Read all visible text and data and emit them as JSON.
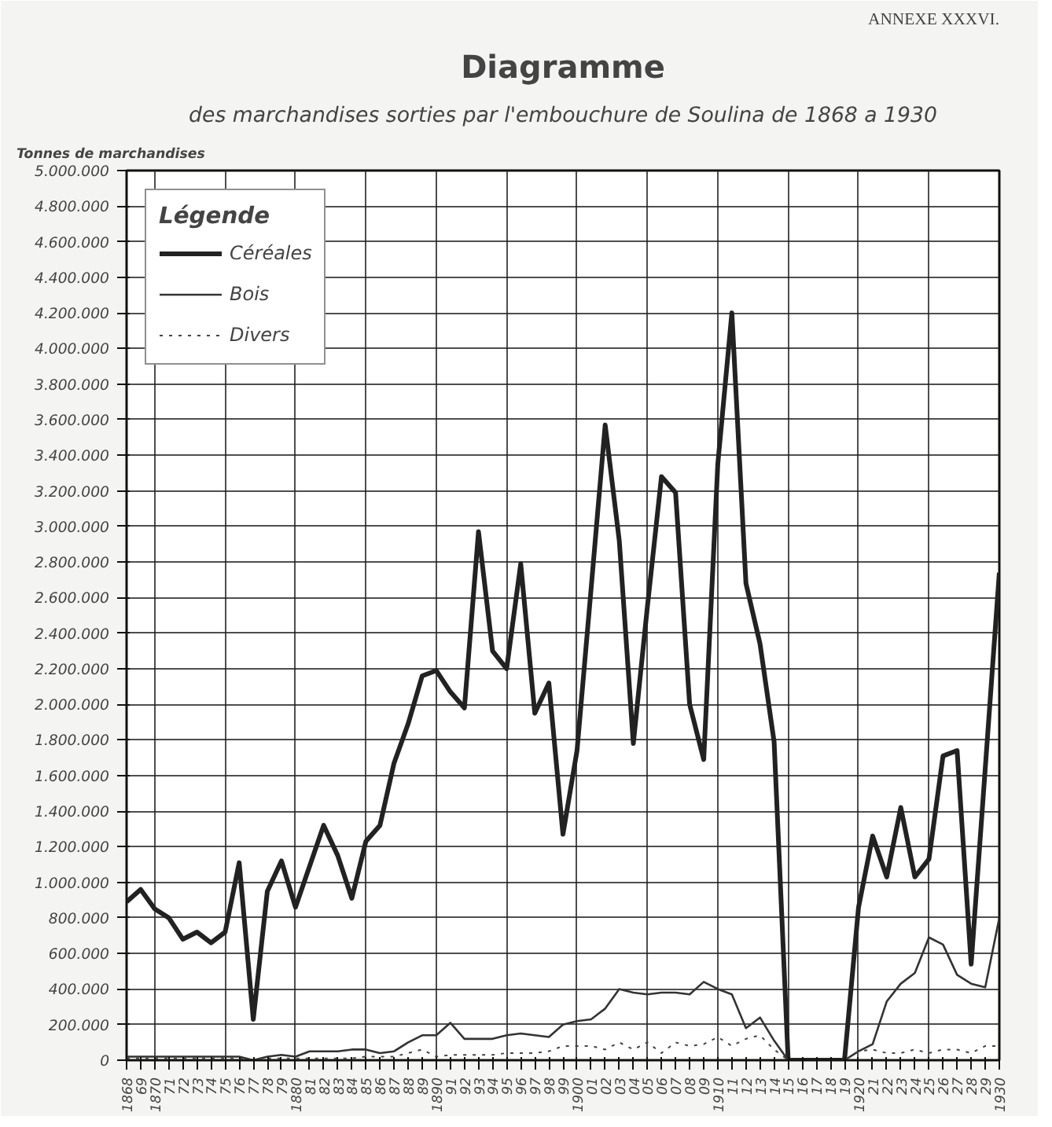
{
  "chart_data": {
    "type": "line",
    "title": "Diagramme",
    "subtitle": "des marchandises sorties par l'embouchure de Soulina de 1868 a 1930",
    "ylabel": "Tonnes de marchandises",
    "legend_title": "Légende",
    "annotations": [
      "ANNEXE XXXVI."
    ],
    "x": [
      1868,
      1869,
      1870,
      1871,
      1872,
      1873,
      1874,
      1875,
      1876,
      1877,
      1878,
      1879,
      1880,
      1881,
      1882,
      1883,
      1884,
      1885,
      1886,
      1887,
      1888,
      1889,
      1890,
      1891,
      1892,
      1893,
      1894,
      1895,
      1896,
      1897,
      1898,
      1899,
      1900,
      1901,
      1902,
      1903,
      1904,
      1905,
      1906,
      1907,
      1908,
      1909,
      1910,
      1911,
      1912,
      1913,
      1914,
      1915,
      1916,
      1917,
      1918,
      1919,
      1920,
      1921,
      1922,
      1923,
      1924,
      1925,
      1926,
      1927,
      1928,
      1929,
      1930
    ],
    "series": [
      {
        "name": "Céréales",
        "color": "#222222",
        "line_style": "solid",
        "values": [
          890000,
          960000,
          850000,
          800000,
          680000,
          720000,
          660000,
          720000,
          1110000,
          230000,
          950000,
          1120000,
          860000,
          1090000,
          1320000,
          1150000,
          910000,
          1230000,
          1320000,
          1670000,
          1890000,
          2160000,
          2190000,
          2070000,
          1980000,
          2970000,
          2300000,
          2200000,
          2790000,
          1950000,
          2120000,
          1270000,
          1740000,
          2650000,
          3570000,
          2920000,
          1780000,
          2550000,
          3280000,
          3190000,
          2000000,
          1690000,
          3350000,
          4200000,
          2680000,
          2340000,
          1790000,
          0,
          0,
          0,
          0,
          0,
          860000,
          1260000,
          1030000,
          1420000,
          1030000,
          1130000,
          1710000,
          1740000,
          540000,
          1640000,
          2740000
        ]
      },
      {
        "name": "Bois",
        "color": "#333333",
        "line_style": "solid",
        "values": [
          20000,
          20000,
          20000,
          20000,
          20000,
          20000,
          20000,
          20000,
          20000,
          0,
          20000,
          30000,
          20000,
          50000,
          50000,
          50000,
          60000,
          60000,
          40000,
          50000,
          100000,
          140000,
          140000,
          210000,
          120000,
          120000,
          120000,
          140000,
          150000,
          140000,
          130000,
          200000,
          220000,
          230000,
          290000,
          400000,
          380000,
          370000,
          380000,
          380000,
          370000,
          440000,
          400000,
          370000,
          180000,
          240000,
          110000,
          0,
          0,
          0,
          0,
          0,
          50000,
          90000,
          330000,
          430000,
          490000,
          690000,
          650000,
          480000,
          430000,
          410000,
          800000
        ]
      },
      {
        "name": "Divers",
        "color": "#444444",
        "line_style": "dotted",
        "values": [
          10000,
          10000,
          10000,
          10000,
          10000,
          10000,
          10000,
          10000,
          10000,
          0,
          10000,
          10000,
          10000,
          10000,
          10000,
          10000,
          10000,
          20000,
          20000,
          20000,
          40000,
          60000,
          20000,
          30000,
          30000,
          30000,
          30000,
          40000,
          40000,
          40000,
          50000,
          80000,
          80000,
          80000,
          60000,
          100000,
          60000,
          100000,
          40000,
          100000,
          80000,
          90000,
          130000,
          80000,
          120000,
          140000,
          60000,
          0,
          0,
          0,
          0,
          0,
          50000,
          60000,
          40000,
          40000,
          60000,
          40000,
          60000,
          60000,
          40000,
          80000,
          80000
        ]
      }
    ],
    "xlim": [
      1868,
      1930
    ],
    "ylim": [
      0,
      5000000
    ],
    "xticks": [
      1868,
      {
        "value": 1869,
        "label": "69"
      },
      1870,
      {
        "value": 1871,
        "label": "71"
      },
      {
        "value": 1872,
        "label": "72"
      },
      {
        "value": 1873,
        "label": "73"
      },
      {
        "value": 1874,
        "label": "74"
      },
      {
        "value": 1875,
        "label": "75"
      },
      {
        "value": 1876,
        "label": "76"
      },
      {
        "value": 1877,
        "label": "77"
      },
      {
        "value": 1878,
        "label": "78"
      },
      {
        "value": 1879,
        "label": "79"
      },
      1880,
      {
        "value": 1881,
        "label": "81"
      },
      {
        "value": 1882,
        "label": "82"
      },
      {
        "value": 1883,
        "label": "83"
      },
      {
        "value": 1884,
        "label": "84"
      },
      {
        "value": 1885,
        "label": "85"
      },
      {
        "value": 1886,
        "label": "86"
      },
      {
        "value": 1887,
        "label": "87"
      },
      {
        "value": 1888,
        "label": "88"
      },
      {
        "value": 1889,
        "label": "89"
      },
      1890,
      {
        "value": 1891,
        "label": "91"
      },
      {
        "value": 1892,
        "label": "92"
      },
      {
        "value": 1893,
        "label": "93"
      },
      {
        "value": 1894,
        "label": "94"
      },
      {
        "value": 1895,
        "label": "95"
      },
      {
        "value": 1896,
        "label": "96"
      },
      {
        "value": 1897,
        "label": "97"
      },
      {
        "value": 1898,
        "label": "98"
      },
      {
        "value": 1899,
        "label": "99"
      },
      1900,
      {
        "value": 1901,
        "label": "01"
      },
      {
        "value": 1902,
        "label": "02"
      },
      {
        "value": 1903,
        "label": "03"
      },
      {
        "value": 1904,
        "label": "04"
      },
      {
        "value": 1905,
        "label": "05"
      },
      {
        "value": 1906,
        "label": "06"
      },
      {
        "value": 1907,
        "label": "07"
      },
      {
        "value": 1908,
        "label": "08"
      },
      {
        "value": 1909,
        "label": "09"
      },
      1910,
      {
        "value": 1911,
        "label": "11"
      },
      {
        "value": 1912,
        "label": "12"
      },
      {
        "value": 1913,
        "label": "13"
      },
      {
        "value": 1914,
        "label": "14"
      },
      {
        "value": 1915,
        "label": "15"
      },
      {
        "value": 1916,
        "label": "16"
      },
      {
        "value": 1917,
        "label": "17"
      },
      {
        "value": 1918,
        "label": "18"
      },
      {
        "value": 1919,
        "label": "19"
      },
      1920,
      {
        "value": 1921,
        "label": "21"
      },
      {
        "value": 1922,
        "label": "22"
      },
      {
        "value": 1923,
        "label": "23"
      },
      {
        "value": 1924,
        "label": "24"
      },
      {
        "value": 1925,
        "label": "25"
      },
      {
        "value": 1926,
        "label": "26"
      },
      {
        "value": 1927,
        "label": "27"
      },
      {
        "value": 1928,
        "label": "28"
      },
      {
        "value": 1929,
        "label": "29"
      },
      1930
    ],
    "yticks": [
      0,
      {
        "value": 200000,
        "label": "200.000"
      },
      {
        "value": 400000,
        "label": "400.000"
      },
      {
        "value": 600000,
        "label": "600.000"
      },
      {
        "value": 800000,
        "label": "800.000"
      },
      {
        "value": 1000000,
        "label": "1.000.000"
      },
      {
        "value": 1200000,
        "label": "1.200.000"
      },
      {
        "value": 1400000,
        "label": "1.400.000"
      },
      {
        "value": 1600000,
        "label": "1.600.000"
      },
      {
        "value": 1800000,
        "label": "1.800.000"
      },
      {
        "value": 2000000,
        "label": "2.000.000"
      },
      {
        "value": 2200000,
        "label": "2.200.000"
      },
      {
        "value": 2400000,
        "label": "2.400.000"
      },
      {
        "value": 2600000,
        "label": "2.600.000"
      },
      {
        "value": 2800000,
        "label": "2.800.000"
      },
      {
        "value": 3000000,
        "label": "3.000.000"
      },
      {
        "value": 3200000,
        "label": "3.200.000"
      },
      {
        "value": 3400000,
        "label": "3.400.000"
      },
      {
        "value": 3600000,
        "label": "3.600.000"
      },
      {
        "value": 3800000,
        "label": "3.800.000"
      },
      {
        "value": 4000000,
        "label": "4.000.000"
      },
      {
        "value": 4200000,
        "label": "4.200.000"
      },
      {
        "value": 4400000,
        "label": "4.400.000"
      },
      {
        "value": 4600000,
        "label": "4.600.000"
      },
      {
        "value": 4800000,
        "label": "4.800.000"
      },
      {
        "value": 5000000,
        "label": "5.000.000"
      }
    ],
    "grid": true,
    "legend": "top left",
    "marker": "none"
  }
}
